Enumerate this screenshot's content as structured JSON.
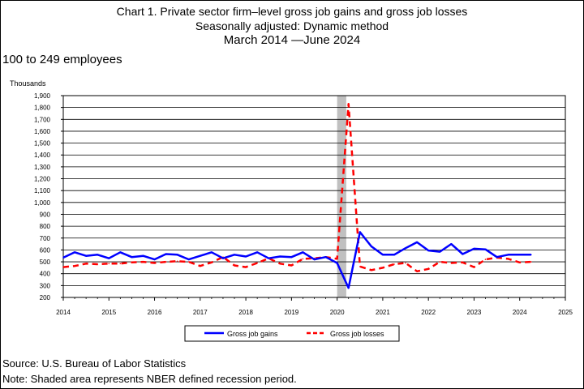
{
  "header": {
    "title_line1": "Chart 1. Private sector firm–level gross job gains and gross job losses",
    "title_line2": "Seasonally adjusted: Dynamic method",
    "title_line3": "March 2014  —June 2024"
  },
  "panel_label": "100 to 249 employees",
  "units_label": "Thousands",
  "footer": {
    "source": "Source: U.S. Bureau of Labor Statistics",
    "note": "Note: Shaded area represents NBER defined recession period."
  },
  "chart_data": {
    "type": "line",
    "title": "Chart 1. Private sector firm–level gross job gains and gross job losses",
    "ylabel": "Thousands",
    "xlim": [
      2014,
      2025
    ],
    "ylim": [
      200,
      1900
    ],
    "x_ticks": [
      2014,
      2015,
      2016,
      2017,
      2018,
      2019,
      2020,
      2021,
      2022,
      2023,
      2024,
      2025
    ],
    "y_ticks": [
      200,
      300,
      400,
      500,
      600,
      700,
      800,
      900,
      1000,
      1100,
      1200,
      1300,
      1400,
      1500,
      1600,
      1700,
      1800,
      1900
    ],
    "grid": "horizontal",
    "legend_placement": "bottom-center",
    "recession": {
      "start": 2020.0,
      "end": 2020.2,
      "color": "#c0c0c0"
    },
    "series": [
      {
        "name": "Gross job gains",
        "color": "#0000ff",
        "style": "solid",
        "points": [
          [
            2014.0,
            535
          ],
          [
            2014.25,
            580
          ],
          [
            2014.5,
            550
          ],
          [
            2014.75,
            560
          ],
          [
            2015.0,
            530
          ],
          [
            2015.25,
            580
          ],
          [
            2015.5,
            540
          ],
          [
            2015.75,
            550
          ],
          [
            2016.0,
            520
          ],
          [
            2016.25,
            565
          ],
          [
            2016.5,
            560
          ],
          [
            2016.75,
            520
          ],
          [
            2017.0,
            550
          ],
          [
            2017.25,
            580
          ],
          [
            2017.5,
            530
          ],
          [
            2017.75,
            560
          ],
          [
            2018.0,
            545
          ],
          [
            2018.25,
            580
          ],
          [
            2018.5,
            530
          ],
          [
            2018.75,
            545
          ],
          [
            2019.0,
            540
          ],
          [
            2019.25,
            580
          ],
          [
            2019.5,
            520
          ],
          [
            2019.75,
            540
          ],
          [
            2020.0,
            490
          ],
          [
            2020.25,
            280
          ],
          [
            2020.5,
            750
          ],
          [
            2020.75,
            630
          ],
          [
            2021.0,
            560
          ],
          [
            2021.25,
            560
          ],
          [
            2021.5,
            615
          ],
          [
            2021.75,
            665
          ],
          [
            2022.0,
            595
          ],
          [
            2022.25,
            585
          ],
          [
            2022.5,
            650
          ],
          [
            2022.75,
            565
          ],
          [
            2023.0,
            610
          ],
          [
            2023.25,
            605
          ],
          [
            2023.5,
            540
          ],
          [
            2023.75,
            560
          ],
          [
            2024.0,
            560
          ],
          [
            2024.25,
            560
          ]
        ]
      },
      {
        "name": "Gross job losses",
        "color": "#ff0000",
        "style": "dashed",
        "points": [
          [
            2014.0,
            455
          ],
          [
            2014.25,
            465
          ],
          [
            2014.5,
            485
          ],
          [
            2014.75,
            480
          ],
          [
            2015.0,
            485
          ],
          [
            2015.25,
            485
          ],
          [
            2015.5,
            495
          ],
          [
            2015.75,
            500
          ],
          [
            2016.0,
            490
          ],
          [
            2016.25,
            500
          ],
          [
            2016.5,
            505
          ],
          [
            2016.75,
            500
          ],
          [
            2017.0,
            465
          ],
          [
            2017.25,
            495
          ],
          [
            2017.5,
            540
          ],
          [
            2017.75,
            470
          ],
          [
            2018.0,
            455
          ],
          [
            2018.25,
            490
          ],
          [
            2018.5,
            530
          ],
          [
            2018.75,
            485
          ],
          [
            2019.0,
            470
          ],
          [
            2019.25,
            525
          ],
          [
            2019.5,
            530
          ],
          [
            2019.75,
            540
          ],
          [
            2020.0,
            525
          ],
          [
            2020.25,
            1830
          ],
          [
            2020.5,
            460
          ],
          [
            2020.75,
            430
          ],
          [
            2021.0,
            450
          ],
          [
            2021.25,
            480
          ],
          [
            2021.5,
            490
          ],
          [
            2021.75,
            420
          ],
          [
            2022.0,
            440
          ],
          [
            2022.25,
            500
          ],
          [
            2022.5,
            490
          ],
          [
            2022.75,
            495
          ],
          [
            2023.0,
            455
          ],
          [
            2023.25,
            520
          ],
          [
            2023.5,
            535
          ],
          [
            2023.75,
            525
          ],
          [
            2024.0,
            495
          ],
          [
            2024.25,
            500
          ]
        ]
      }
    ]
  }
}
